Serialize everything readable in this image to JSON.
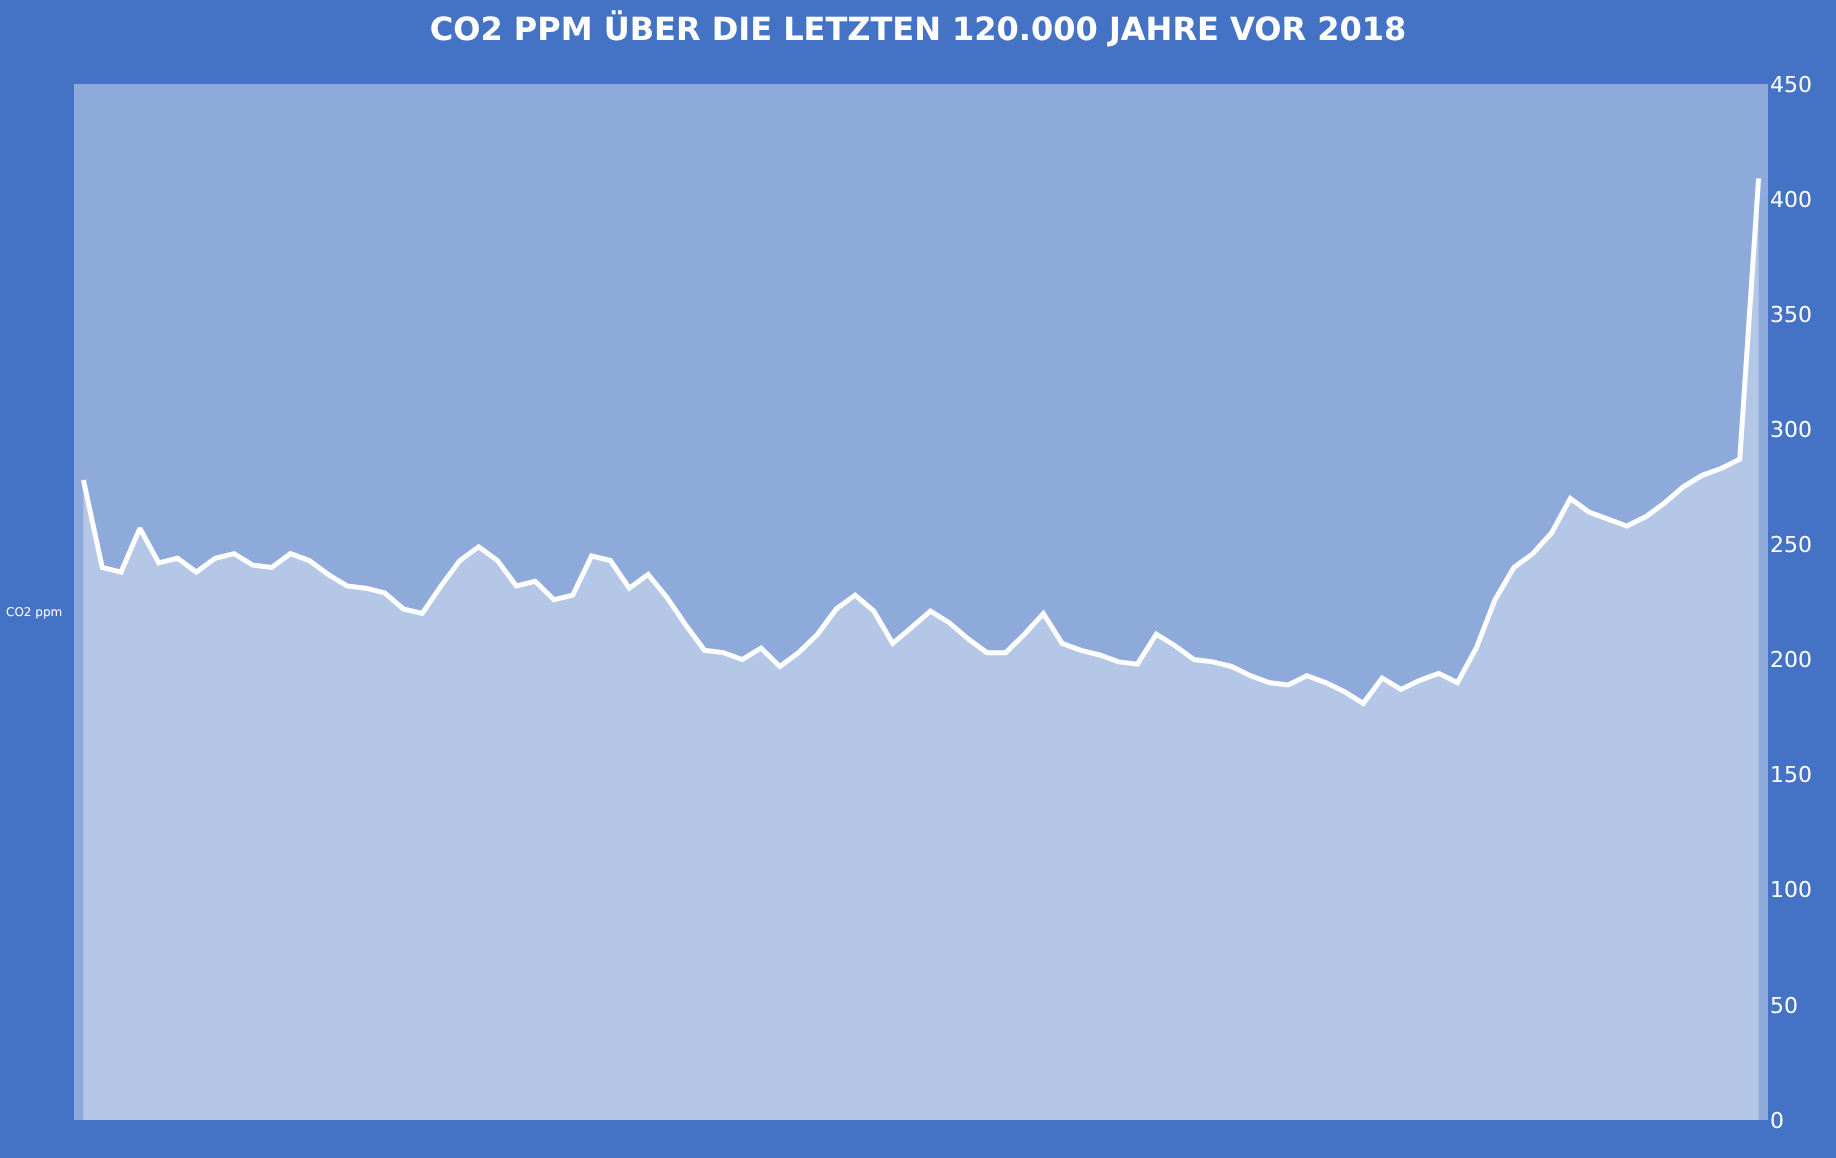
{
  "chart_data": {
    "type": "area",
    "title": "CO2 PPM ÜBER DIE LETZTEN 120.000 JAHRE VOR 2018",
    "ylabel": "CO2 ppm",
    "categories": [
      null,
      null,
      null,
      null,
      null,
      null,
      null,
      null,
      null,
      null,
      null,
      null,
      null,
      null,
      null,
      null,
      null,
      null,
      null,
      null,
      null,
      null,
      null,
      null,
      null,
      null,
      null,
      null,
      null,
      null,
      null,
      null,
      null,
      null,
      null,
      null,
      null,
      null,
      null,
      null,
      null,
      null,
      null,
      null,
      null,
      null,
      null,
      null,
      null,
      null,
      null,
      null,
      null,
      null,
      null,
      null,
      null,
      null,
      null,
      null,
      null,
      null,
      null,
      null,
      null,
      null,
      null,
      null,
      null,
      null,
      null,
      null,
      null,
      null,
      null,
      null,
      null,
      null,
      null,
      null,
      null,
      null,
      null,
      null,
      null,
      null,
      null,
      null,
      null,
      null
    ],
    "series": [
      {
        "color": "#ffffff",
        "values": [
          278,
          240,
          238,
          257,
          242,
          244,
          238,
          244,
          246,
          241,
          240,
          246,
          243,
          237,
          232,
          231,
          229,
          222,
          220,
          232,
          243,
          249,
          243,
          232,
          234,
          226,
          228,
          245,
          243,
          231,
          237,
          227,
          215,
          204,
          203,
          200,
          205,
          197,
          203,
          211,
          222,
          228,
          221,
          207,
          214,
          221,
          216,
          209,
          203,
          203,
          211,
          220,
          207,
          204,
          202,
          199,
          198,
          211,
          206,
          200,
          199,
          197,
          193,
          190,
          189,
          193,
          190,
          186,
          181,
          192,
          187,
          191,
          194,
          190,
          205,
          226,
          240,
          246,
          255,
          270,
          264,
          261,
          258,
          262,
          268,
          275,
          280,
          283,
          287,
          409
        ]
      }
    ],
    "ylim": [
      0,
      450
    ],
    "yticks": [
      0,
      50,
      100,
      150,
      200,
      250,
      300,
      350,
      400,
      450
    ],
    "grid": false,
    "line_style": "solid",
    "marker": "none"
  }
}
